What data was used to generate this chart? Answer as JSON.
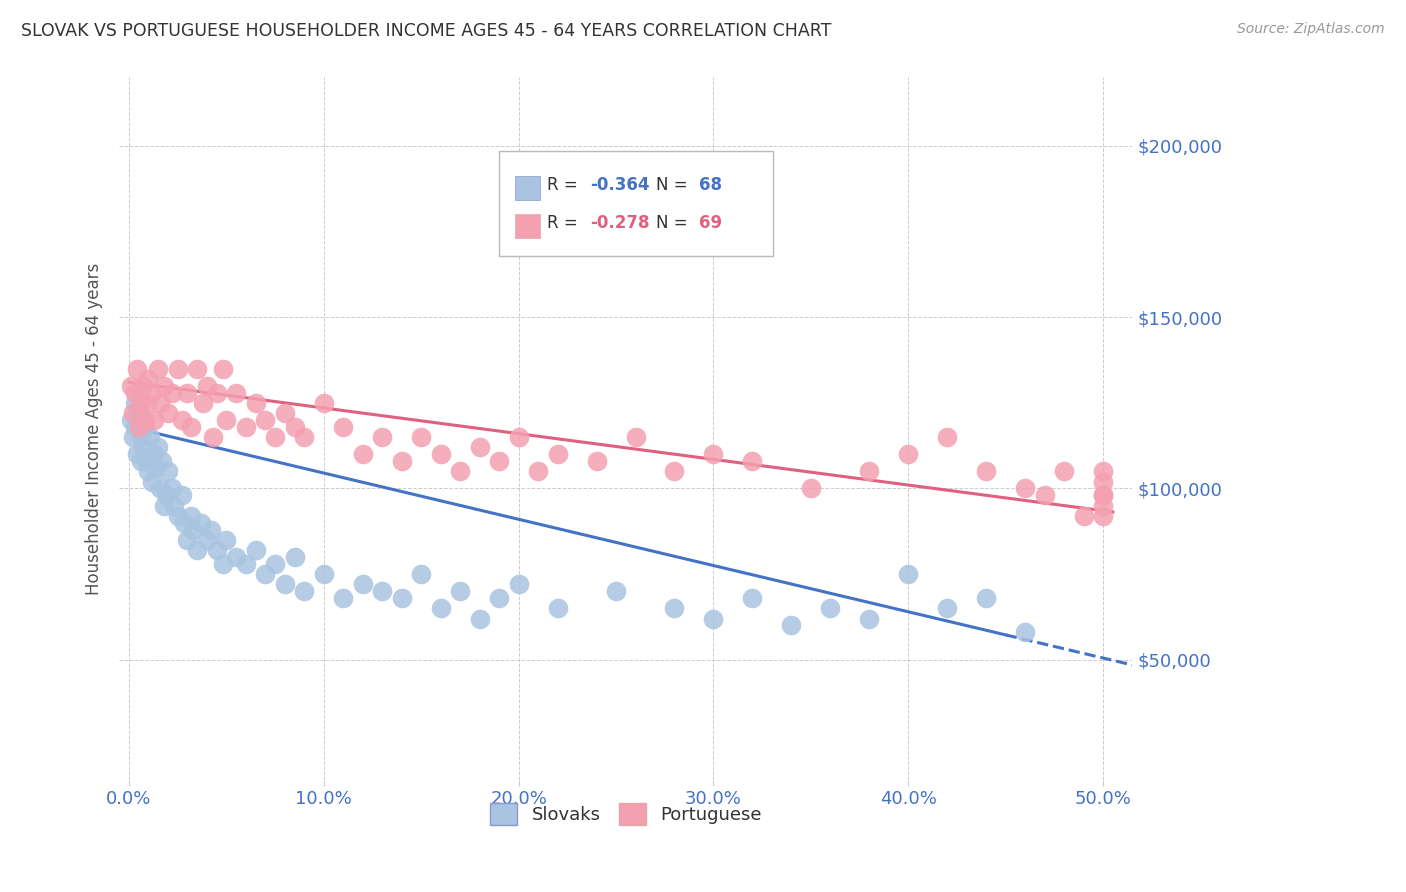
{
  "title": "SLOVAK VS PORTUGUESE HOUSEHOLDER INCOME AGES 45 - 64 YEARS CORRELATION CHART",
  "source": "Source: ZipAtlas.com",
  "ylabel": "Householder Income Ages 45 - 64 years",
  "xlabel_ticks": [
    "0.0%",
    "10.0%",
    "20.0%",
    "30.0%",
    "40.0%",
    "50.0%"
  ],
  "xlabel_vals": [
    0.0,
    0.1,
    0.2,
    0.3,
    0.4,
    0.5
  ],
  "ylabel_ticks": [
    "$50,000",
    "$100,000",
    "$150,000",
    "$200,000"
  ],
  "ylabel_vals": [
    50000,
    100000,
    150000,
    200000
  ],
  "ylim": [
    15000,
    220000
  ],
  "xlim": [
    -0.005,
    0.515
  ],
  "slovak_color": "#a8c4e0",
  "portuguese_color": "#f4a0b0",
  "slovak_line_color": "#4472C4",
  "portuguese_line_color": "#E06080",
  "title_color": "#333333",
  "axis_label_color": "#4472C4",
  "background_color": "#ffffff",
  "grid_color": "#cccccc",
  "legend_r1": "-0.364",
  "legend_n1": "68",
  "legend_r2": "-0.278",
  "legend_n2": "69",
  "slovak_line_intercept": 118000,
  "slovak_line_slope": -135000,
  "portuguese_line_intercept": 131000,
  "portuguese_line_slope": -75000,
  "slovak_scatter_x": [
    0.001,
    0.002,
    0.003,
    0.003,
    0.004,
    0.005,
    0.006,
    0.006,
    0.007,
    0.008,
    0.009,
    0.01,
    0.011,
    0.012,
    0.013,
    0.014,
    0.015,
    0.016,
    0.017,
    0.018,
    0.019,
    0.02,
    0.022,
    0.023,
    0.025,
    0.027,
    0.028,
    0.03,
    0.032,
    0.033,
    0.035,
    0.037,
    0.04,
    0.042,
    0.045,
    0.048,
    0.05,
    0.055,
    0.06,
    0.065,
    0.07,
    0.075,
    0.08,
    0.085,
    0.09,
    0.1,
    0.11,
    0.12,
    0.13,
    0.14,
    0.15,
    0.16,
    0.17,
    0.18,
    0.19,
    0.2,
    0.22,
    0.25,
    0.28,
    0.3,
    0.32,
    0.34,
    0.36,
    0.38,
    0.4,
    0.42,
    0.44,
    0.46
  ],
  "slovak_scatter_y": [
    120000,
    115000,
    125000,
    118000,
    110000,
    122000,
    108000,
    115000,
    112000,
    118000,
    108000,
    105000,
    115000,
    102000,
    110000,
    106000,
    112000,
    100000,
    108000,
    95000,
    98000,
    105000,
    100000,
    95000,
    92000,
    98000,
    90000,
    85000,
    92000,
    88000,
    82000,
    90000,
    85000,
    88000,
    82000,
    78000,
    85000,
    80000,
    78000,
    82000,
    75000,
    78000,
    72000,
    80000,
    70000,
    75000,
    68000,
    72000,
    70000,
    68000,
    75000,
    65000,
    70000,
    62000,
    68000,
    72000,
    65000,
    70000,
    65000,
    62000,
    68000,
    60000,
    65000,
    62000,
    75000,
    65000,
    68000,
    58000
  ],
  "portuguese_scatter_x": [
    0.001,
    0.002,
    0.003,
    0.004,
    0.005,
    0.006,
    0.007,
    0.008,
    0.009,
    0.01,
    0.012,
    0.013,
    0.015,
    0.016,
    0.018,
    0.02,
    0.022,
    0.025,
    0.027,
    0.03,
    0.032,
    0.035,
    0.038,
    0.04,
    0.043,
    0.045,
    0.048,
    0.05,
    0.055,
    0.06,
    0.065,
    0.07,
    0.075,
    0.08,
    0.085,
    0.09,
    0.1,
    0.11,
    0.12,
    0.13,
    0.14,
    0.15,
    0.16,
    0.17,
    0.18,
    0.19,
    0.2,
    0.21,
    0.22,
    0.24,
    0.26,
    0.28,
    0.3,
    0.32,
    0.35,
    0.38,
    0.4,
    0.42,
    0.44,
    0.46,
    0.47,
    0.48,
    0.49,
    0.5,
    0.5,
    0.5,
    0.5,
    0.5,
    0.5
  ],
  "portuguese_scatter_y": [
    130000,
    122000,
    128000,
    135000,
    118000,
    125000,
    130000,
    120000,
    125000,
    132000,
    128000,
    120000,
    135000,
    125000,
    130000,
    122000,
    128000,
    135000,
    120000,
    128000,
    118000,
    135000,
    125000,
    130000,
    115000,
    128000,
    135000,
    120000,
    128000,
    118000,
    125000,
    120000,
    115000,
    122000,
    118000,
    115000,
    125000,
    118000,
    110000,
    115000,
    108000,
    115000,
    110000,
    105000,
    112000,
    108000,
    115000,
    105000,
    110000,
    108000,
    115000,
    105000,
    110000,
    108000,
    100000,
    105000,
    110000,
    115000,
    105000,
    100000,
    98000,
    105000,
    92000,
    98000,
    105000,
    92000,
    98000,
    102000,
    95000
  ]
}
